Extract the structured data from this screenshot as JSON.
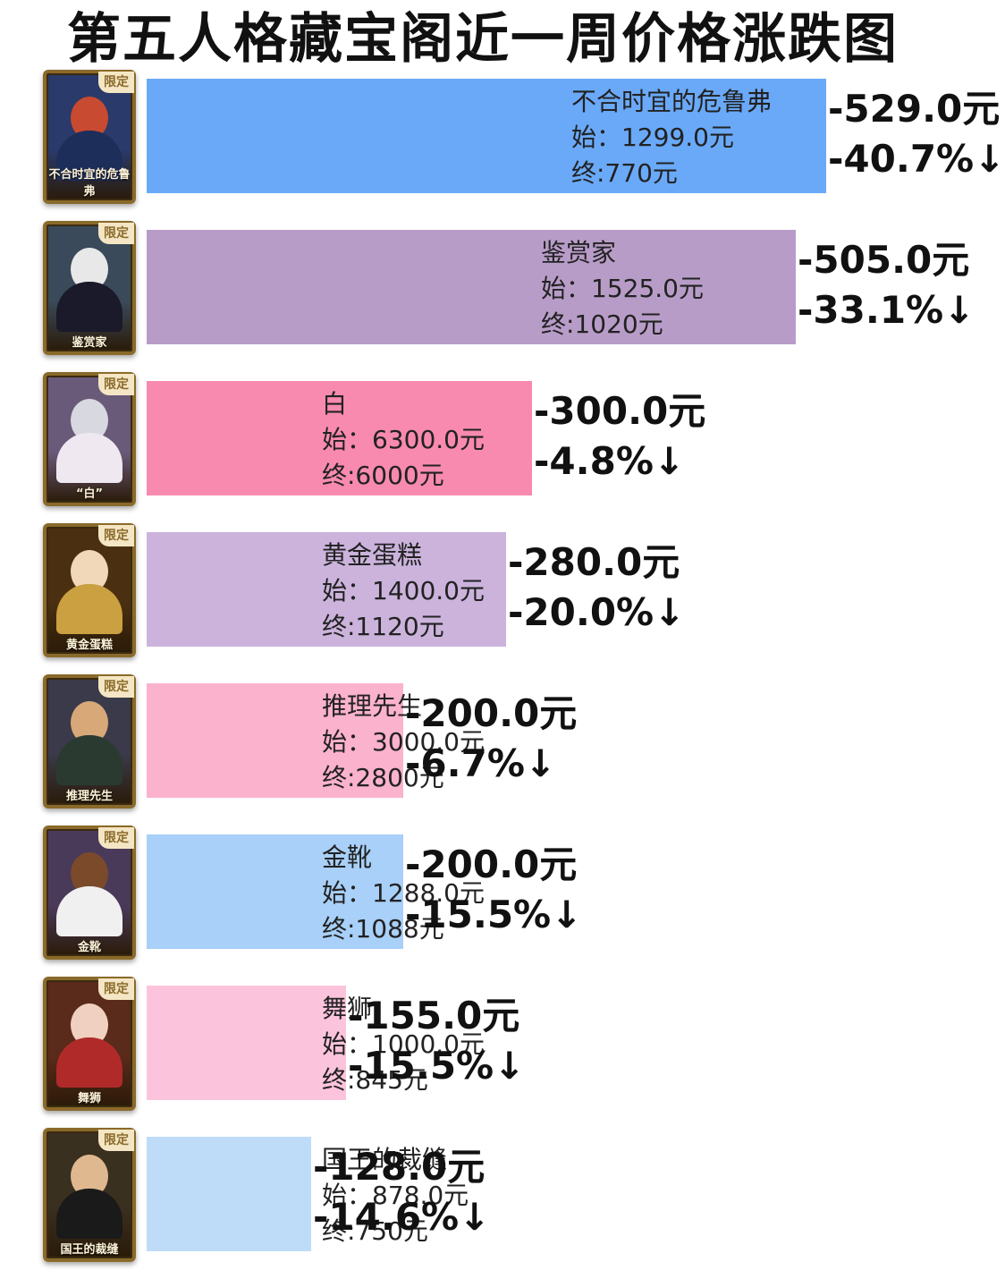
{
  "chart_data": {
    "type": "bar",
    "orientation": "horizontal",
    "title": "第五人格藏宝阁近一周价格涨跌图",
    "badge_label": "限定",
    "start_prefix": "始：",
    "end_prefix": "终:",
    "currency": "元",
    "items": [
      {
        "name": "不合时宜的危鲁弗",
        "card_name": "不合时宜的危鲁弗",
        "start": 1299.0,
        "end": 770,
        "change": -529.0,
        "change_label": "-529.0元",
        "pct_label": "-40.7%↓",
        "color": "#6aa9f8"
      },
      {
        "name": "鉴赏家",
        "card_name": "鉴赏家",
        "start": 1525.0,
        "end": 1020,
        "change": -505.0,
        "change_label": "-505.0元",
        "pct_label": "-33.1%↓",
        "color": "#b89cc8"
      },
      {
        "name": "白",
        "card_name": "“白”",
        "start": 6300.0,
        "end": 6000,
        "change": -300.0,
        "change_label": "-300.0元",
        "pct_label": "-4.8%↓",
        "color": "#f88ab0"
      },
      {
        "name": "黄金蛋糕",
        "card_name": "黄金蛋糕",
        "start": 1400.0,
        "end": 1120,
        "change": -280.0,
        "change_label": "-280.0元",
        "pct_label": "-20.0%↓",
        "color": "#cbb3dc"
      },
      {
        "name": "推理先生",
        "card_name": "推理先生",
        "start": 3000.0,
        "end": 2800,
        "change": -200.0,
        "change_label": "-200.0元",
        "pct_label": "-6.7%↓",
        "color": "#fbb2cc"
      },
      {
        "name": "金靴",
        "card_name": "金靴",
        "start": 1288.0,
        "end": 1088,
        "change": -200.0,
        "change_label": "-200.0元",
        "pct_label": "-15.5%↓",
        "color": "#a8d0f8"
      },
      {
        "name": "舞狮",
        "card_name": "舞狮",
        "start": 1000.0,
        "end": 845,
        "change": -155.0,
        "change_label": "-155.0元",
        "pct_label": "-15.5%↓",
        "color": "#fcc4dc"
      },
      {
        "name": "国王的裁缝",
        "card_name": "国王的裁缝",
        "start": 878.0,
        "end": 750,
        "change": -128.0,
        "change_label": "-128.0元",
        "pct_label": "-14.6%↓",
        "color": "#bedcf8"
      }
    ]
  }
}
